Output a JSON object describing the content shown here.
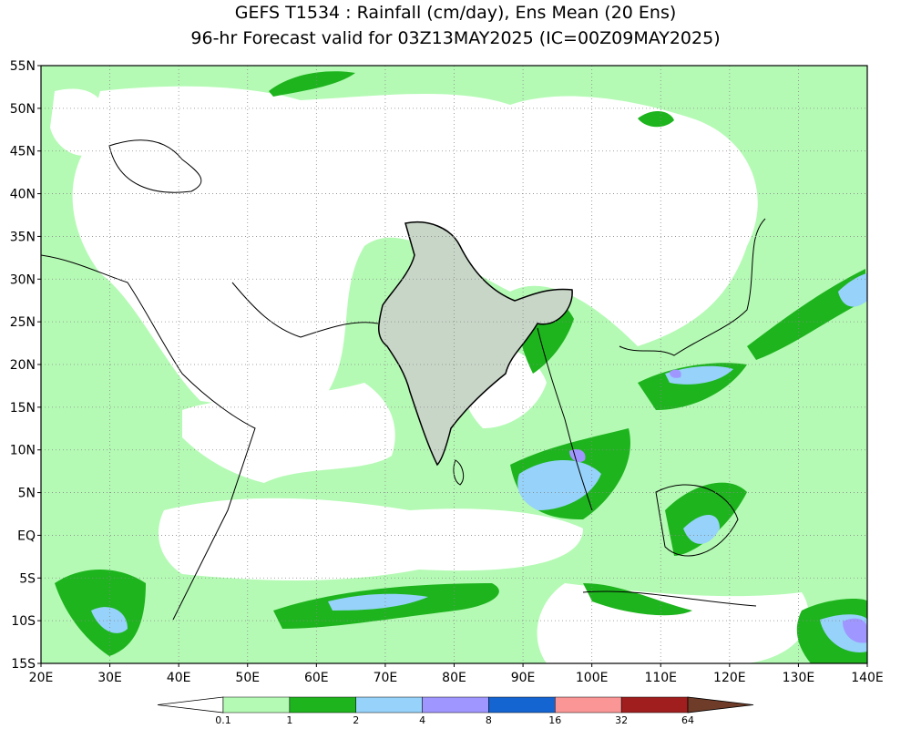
{
  "header": {
    "title": "GEFS T1534 : Rainfall (cm/day), Ens Mean (20 Ens)",
    "subtitle": "96-hr Forecast valid for 03Z13MAY2025 (IC=00Z09MAY2025)"
  },
  "map": {
    "lat_labels": [
      "55N",
      "50N",
      "45N",
      "40N",
      "35N",
      "30N",
      "25N",
      "20N",
      "15N",
      "10N",
      "5N",
      "EQ",
      "5S",
      "10S",
      "15S"
    ],
    "lon_labels": [
      "20E",
      "30E",
      "40E",
      "50E",
      "60E",
      "70E",
      "80E",
      "90E",
      "100E",
      "110E",
      "120E",
      "130E",
      "140E"
    ]
  },
  "legend": {
    "levels": [
      0.1,
      1,
      2,
      4,
      8,
      16,
      32,
      64
    ],
    "colors": [
      "#ffffff",
      "#b4fab4",
      "#1eb41e",
      "#96d2fa",
      "#a096ff",
      "#1464d2",
      "#fa9696",
      "#a01e1e",
      "#6e3c28"
    ]
  }
}
